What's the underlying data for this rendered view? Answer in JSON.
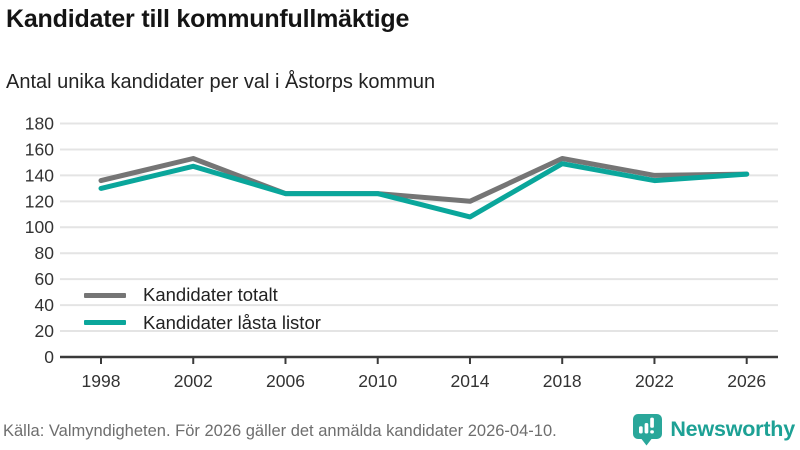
{
  "header": {
    "title": "Kandidater till kommunfullmäktige",
    "subtitle": "Antal unika kandidater per val i Åstorps kommun"
  },
  "chart_data": {
    "type": "line",
    "x": [
      1998,
      2002,
      2006,
      2010,
      2014,
      2018,
      2022,
      2026
    ],
    "series": [
      {
        "name": "Kandidater totalt",
        "color": "#757575",
        "values": [
          136,
          153,
          126,
          126,
          120,
          153,
          140,
          141
        ]
      },
      {
        "name": "Kandidater låsta listor",
        "color": "#0aa69b",
        "values": [
          130,
          147,
          126,
          126,
          108,
          149,
          136,
          141
        ]
      }
    ],
    "title": "Kandidater till kommunfullmäktige",
    "subtitle": "Antal unika kandidater per val i Åstorps kommun",
    "xlabel": "",
    "ylabel": "",
    "ylim": [
      0,
      180
    ],
    "ytick_step": 20,
    "grid": "horizontal",
    "legend_position": "inside-bottom-left"
  },
  "footer": {
    "source": "Källa: Valmyndigheten. För 2026 gäller det anmälda kandidater 2026-04-10.",
    "brand": "Newsworthy"
  },
  "colors": {
    "series_gray": "#757575",
    "series_teal": "#0aa69b",
    "brand_teal": "#1da195",
    "axis": "#3a3a3a",
    "gridline": "#e4e4e4",
    "tick_text": "#333333"
  }
}
